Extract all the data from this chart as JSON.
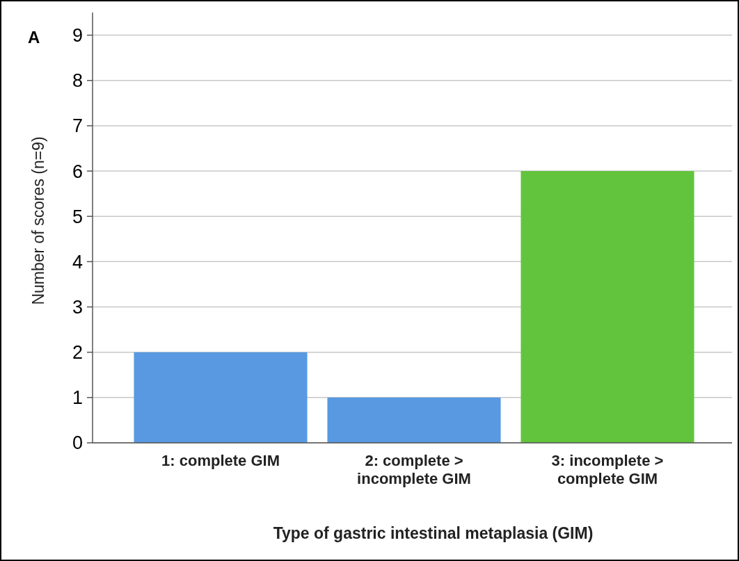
{
  "chart_data": {
    "type": "bar",
    "xlabel": "Type of gastric intestinal metaplasia (GIM)",
    "ylabel": "Number of scores (n=9)",
    "annotations": [
      "A"
    ],
    "categories": [
      "1: complete GIM",
      "2: complete >\nincomplete GIM",
      "3: incomplete >\ncomplete GIM"
    ],
    "values": [
      2,
      1,
      6
    ],
    "colors": [
      "#5899e2",
      "#5899e2",
      "#62c43c"
    ],
    "ylim": [
      0,
      9.5
    ],
    "yticks": [
      0,
      1,
      2,
      3,
      4,
      5,
      6,
      7,
      8,
      9
    ],
    "grid": "y"
  }
}
